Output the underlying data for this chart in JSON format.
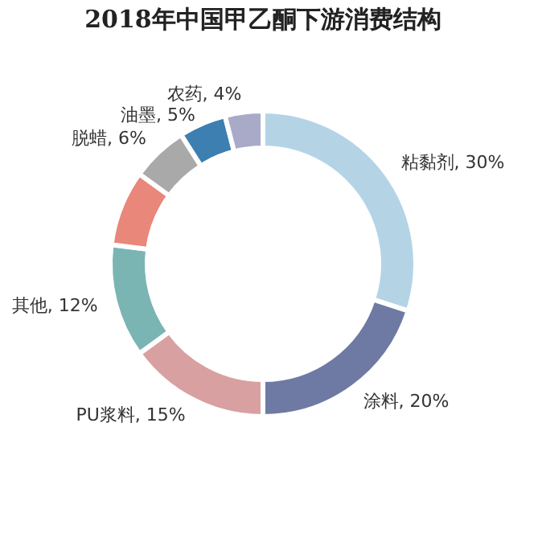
{
  "chart_data": {
    "type": "donut",
    "title": "2018年中国甲乙酮下游消费结构",
    "categories": [
      "粘黏剂",
      "涂料",
      "PU浆料",
      "其他",
      null,
      "脱蜡",
      "油墨",
      "农药"
    ],
    "values": [
      30,
      20,
      15,
      12,
      8,
      6,
      5,
      4
    ],
    "value_labels": [
      "30%",
      "20%",
      "15%",
      "12%",
      null,
      "6%",
      "5%",
      "4%"
    ],
    "colors": [
      "#b4d4e6",
      "#6e7aa3",
      "#d8a0a0",
      "#7ab5b3",
      "#e8877a",
      "#a9a9a9",
      "#3d7fb0",
      "#a9aac8"
    ],
    "legend": false
  }
}
